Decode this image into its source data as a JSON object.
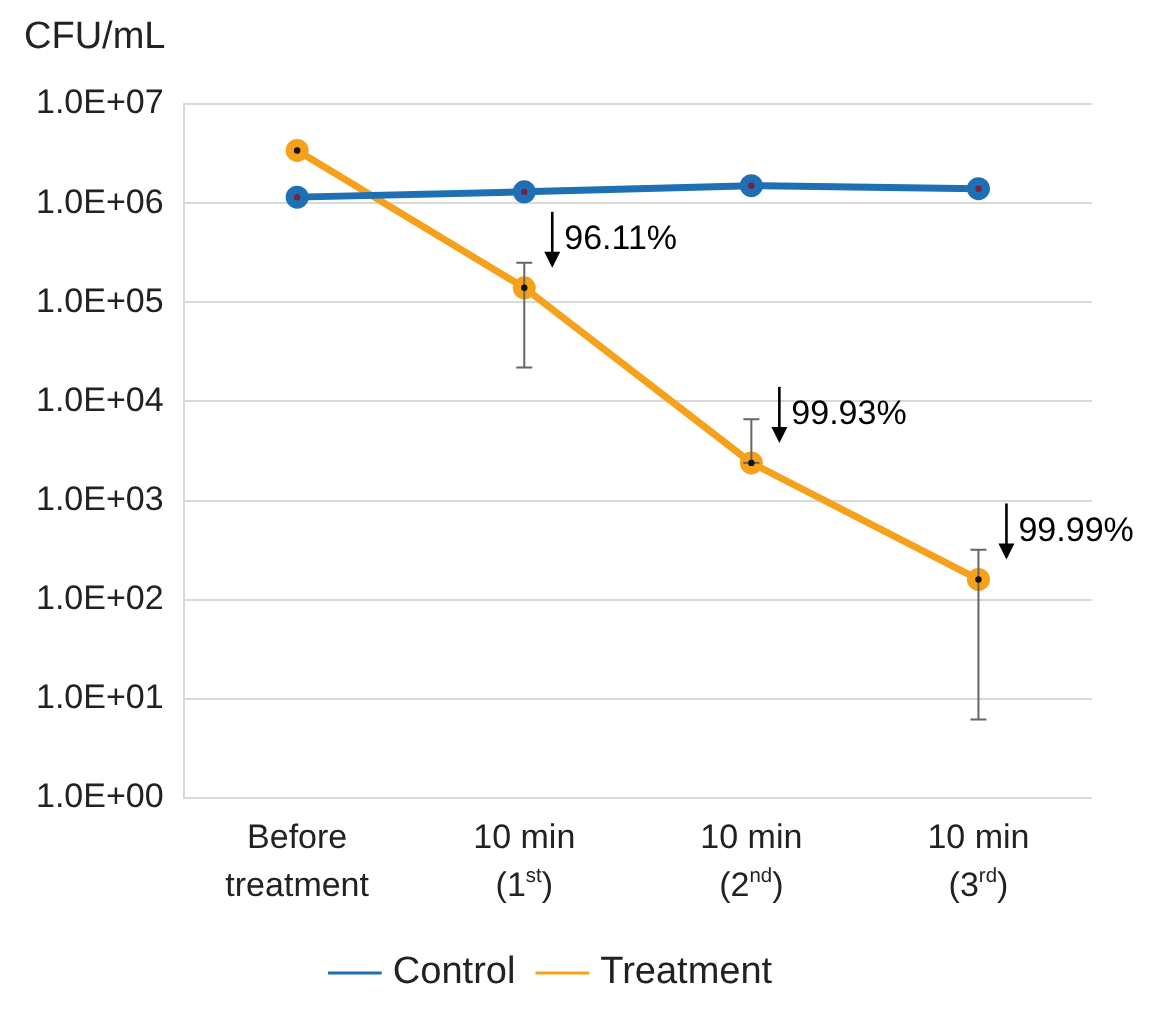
{
  "chart_data": {
    "type": "line",
    "ylabel": "CFU/mL",
    "categories": [
      "Before treatment",
      "10 min (1$^{st}$)",
      "10 min (2$^{nd}$)",
      "10 min (3$^{rd}$)"
    ],
    "series": [
      {
        "name": "Control",
        "color": "#1f6fb5",
        "values": [
          1150000,
          1300000,
          1500000,
          1400000
        ]
      },
      {
        "name": "Treatment",
        "color": "#f5a11c",
        "values": [
          3400000,
          140000,
          2400,
          160
        ],
        "errors": [
          null,
          [
            22000,
            250000
          ],
          [
            2400,
            6600
          ],
          [
            6.2,
            320
          ]
        ]
      }
    ],
    "log": "y",
    "ylim": [
      1,
      10000000
    ],
    "yticks": [
      {
        "value": 1,
        "label": "1.0E+00"
      },
      {
        "value": 10,
        "label": "1.0E+01"
      },
      {
        "value": 100,
        "label": "1.0E+02"
      },
      {
        "value": 1000,
        "label": "1.0E+03"
      },
      {
        "value": 10000,
        "label": "1.0E+04"
      },
      {
        "value": 100000,
        "label": "1.0E+05"
      },
      {
        "value": 1000000,
        "label": "1.0E+06"
      },
      {
        "value": 10000000,
        "label": "1.0E+07"
      }
    ],
    "annotations": [
      {
        "text": "96.11%",
        "x": "10 min (1$^{st}$)",
        "y": 140000
      },
      {
        "text": "99.93%",
        "x": "10 min (2$^{nd}$)",
        "y": 2400
      },
      {
        "text": "99.99%",
        "x": "10 min (3$^{rd}$)",
        "y": 160
      }
    ],
    "grid": "y",
    "legend": "bottom",
    "marker": "circle",
    "line_style": "solid"
  }
}
